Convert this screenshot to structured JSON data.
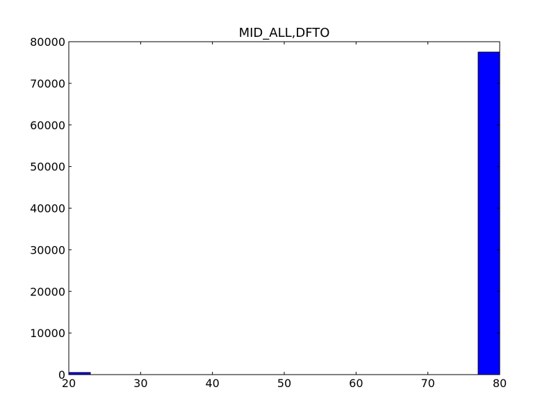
{
  "chart_data": {
    "type": "bar",
    "title": "MID_ALL,DFTO",
    "xlabel": "",
    "ylabel": "",
    "xlim": [
      20,
      80
    ],
    "ylim": [
      0,
      80000
    ],
    "x_ticks": [
      "20",
      "30",
      "40",
      "50",
      "60",
      "70",
      "80"
    ],
    "y_ticks": [
      "0",
      "10000",
      "20000",
      "30000",
      "40000",
      "50000",
      "60000",
      "70000",
      "80000"
    ],
    "bins": [
      {
        "x_start": 20,
        "x_end": 23,
        "value": 500
      },
      {
        "x_start": 77,
        "x_end": 80,
        "value": 77500
      }
    ],
    "bar_color": "#0000ff",
    "grid": false
  }
}
